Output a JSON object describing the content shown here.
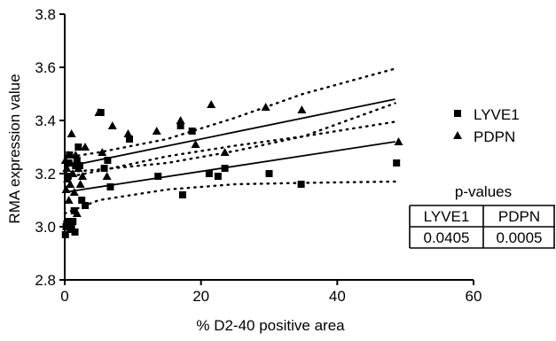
{
  "chart_data": {
    "type": "scatter",
    "xlabel": "% D2-40 positive area",
    "ylabel": "RMA expression value",
    "xlim": [
      0,
      60
    ],
    "ylim": [
      2.8,
      3.8
    ],
    "x_ticks": [
      "0",
      "20",
      "40",
      "60"
    ],
    "y_ticks": [
      "2.8",
      "3.0",
      "3.2",
      "3.4",
      "3.6",
      "3.8"
    ],
    "grid": false,
    "legend_position": "right",
    "series": [
      {
        "name": "LYVE1",
        "marker": "square",
        "color": "#000000",
        "points": [
          [
            0.1,
            2.97
          ],
          [
            0.2,
            3.0
          ],
          [
            0.3,
            3.01
          ],
          [
            0.4,
            3.02
          ],
          [
            0.5,
            3.19
          ],
          [
            0.6,
            3.24
          ],
          [
            0.7,
            3.27
          ],
          [
            0.8,
            2.99
          ],
          [
            1.0,
            3.0
          ],
          [
            1.2,
            3.02
          ],
          [
            1.4,
            3.06
          ],
          [
            1.5,
            2.98
          ],
          [
            1.6,
            3.23
          ],
          [
            1.8,
            3.25
          ],
          [
            2.0,
            3.3
          ],
          [
            2.2,
            3.23
          ],
          [
            2.5,
            3.1
          ],
          [
            3.0,
            3.08
          ],
          [
            5.3,
            3.43
          ],
          [
            5.8,
            3.22
          ],
          [
            6.3,
            3.25
          ],
          [
            6.7,
            3.15
          ],
          [
            9.5,
            3.33
          ],
          [
            13.7,
            3.19
          ],
          [
            17.0,
            3.38
          ],
          [
            17.3,
            3.12
          ],
          [
            18.7,
            3.36
          ],
          [
            21.2,
            3.2
          ],
          [
            22.5,
            3.19
          ],
          [
            23.5,
            3.22
          ],
          [
            30.0,
            3.2
          ],
          [
            34.7,
            3.16
          ],
          [
            48.7,
            3.24
          ]
        ]
      },
      {
        "name": "PDPN",
        "marker": "triangle",
        "color": "#000000",
        "points": [
          [
            0.1,
            3.25
          ],
          [
            0.2,
            3.14
          ],
          [
            0.3,
            3.22
          ],
          [
            0.4,
            3.18
          ],
          [
            0.5,
            3.27
          ],
          [
            0.6,
            3.1
          ],
          [
            0.8,
            3.16
          ],
          [
            1.0,
            3.35
          ],
          [
            1.2,
            3.2
          ],
          [
            1.4,
            3.13
          ],
          [
            1.6,
            3.27
          ],
          [
            1.8,
            3.05
          ],
          [
            2.0,
            3.22
          ],
          [
            2.3,
            3.16
          ],
          [
            2.6,
            3.19
          ],
          [
            3.0,
            3.3
          ],
          [
            5.0,
            3.43
          ],
          [
            5.5,
            3.28
          ],
          [
            6.2,
            3.19
          ],
          [
            7.0,
            3.38
          ],
          [
            9.3,
            3.35
          ],
          [
            13.5,
            3.36
          ],
          [
            17.0,
            3.4
          ],
          [
            19.2,
            3.31
          ],
          [
            21.5,
            3.46
          ],
          [
            23.5,
            3.28
          ],
          [
            29.5,
            3.45
          ],
          [
            34.8,
            3.44
          ],
          [
            49.0,
            3.32
          ]
        ]
      }
    ],
    "fits": [
      {
        "series": "PDPN",
        "line": [
          [
            0,
            3.225
          ],
          [
            48.5,
            3.48
          ]
        ],
        "ci_lower": [
          [
            0,
            3.185
          ],
          [
            5,
            3.21
          ],
          [
            15,
            3.265
          ],
          [
            25,
            3.305
          ],
          [
            35,
            3.34
          ],
          [
            48.5,
            3.395
          ]
        ],
        "ci_upper": [
          [
            0,
            3.26
          ],
          [
            5,
            3.28
          ],
          [
            15,
            3.33
          ],
          [
            25,
            3.41
          ],
          [
            35,
            3.5
          ],
          [
            48.5,
            3.595
          ]
        ]
      },
      {
        "series": "LYVE1",
        "line": [
          [
            0,
            3.13
          ],
          [
            48.5,
            3.32
          ]
        ],
        "ci_lower": [
          [
            0,
            3.05
          ],
          [
            5,
            3.1
          ],
          [
            15,
            3.14
          ],
          [
            25,
            3.16
          ],
          [
            35,
            3.165
          ],
          [
            48.5,
            3.17
          ]
        ],
        "ci_upper": [
          [
            0,
            3.205
          ],
          [
            5,
            3.215
          ],
          [
            15,
            3.24
          ],
          [
            25,
            3.285
          ],
          [
            35,
            3.34
          ],
          [
            48.5,
            3.465
          ]
        ]
      }
    ]
  },
  "pvalue_table": {
    "title": "p-values",
    "headers": [
      "LYVE1",
      "PDPN"
    ],
    "values": [
      "0.0405",
      "0.0005"
    ]
  }
}
